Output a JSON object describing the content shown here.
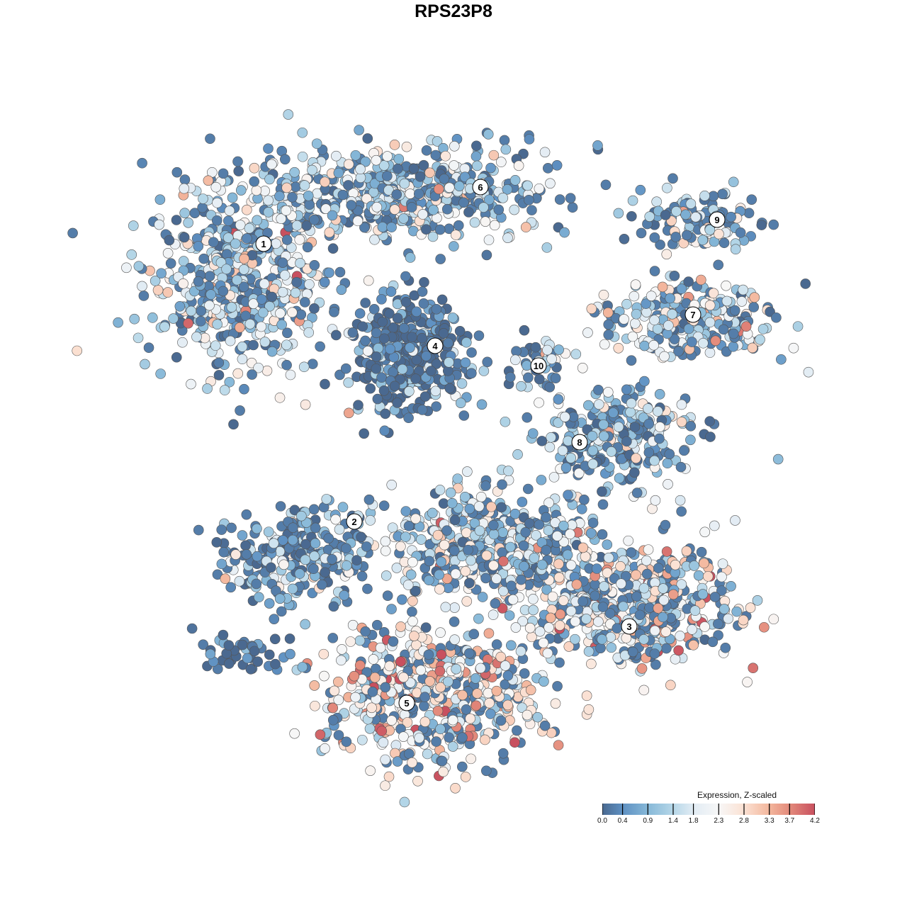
{
  "chart_data": {
    "type": "scatter",
    "title": "RPS23P8",
    "xlabel": "",
    "ylabel": "",
    "xlim": [
      -12,
      12
    ],
    "ylim": [
      -12,
      16
    ],
    "grid": false,
    "axes_visible": false,
    "color_scale": {
      "title": "Expression, Z-scaled",
      "ticks": [
        "0.0",
        "0.4",
        "0.9",
        "1.4",
        "1.8",
        "2.3",
        "2.8",
        "3.3",
        "3.7",
        "4.2"
      ],
      "range": [
        0,
        4.2
      ],
      "colors": [
        "#4a6990",
        "#5e90c2",
        "#86b8d8",
        "#b6d7e8",
        "#e2ecf4",
        "#f7f7f7",
        "#fbe1d3",
        "#f3b69c",
        "#e38a7b",
        "#c8505f"
      ],
      "legend_placement": "bottom-right"
    },
    "clusters": [
      {
        "label": "1",
        "label_pos": [
          -6.7,
          7.4
        ],
        "center": [
          -7.5,
          6.0
        ],
        "spread": [
          3.1,
          2.8
        ],
        "n": 520,
        "mean_expression": 1.5
      },
      {
        "label": "6",
        "label_pos": [
          0.95,
          9.4
        ],
        "center": [
          -2.0,
          9.2
        ],
        "spread": [
          5.2,
          1.6
        ],
        "n": 560,
        "mean_expression": 1.3
      },
      {
        "label": "4",
        "label_pos": [
          -0.65,
          3.8
        ],
        "center": [
          -1.5,
          3.5
        ],
        "spread": [
          1.9,
          1.9
        ],
        "n": 380,
        "mean_expression": 0.25
      },
      {
        "label": "10",
        "label_pos": [
          3.0,
          3.1
        ],
        "center": [
          3.0,
          3.1
        ],
        "spread": [
          0.7,
          0.9
        ],
        "n": 40,
        "mean_expression": 1.2
      },
      {
        "label": "9",
        "label_pos": [
          9.3,
          8.25
        ],
        "center": [
          8.7,
          8.2
        ],
        "spread": [
          1.9,
          0.9
        ],
        "n": 120,
        "mean_expression": 1.4
      },
      {
        "label": "7",
        "label_pos": [
          8.45,
          4.9
        ],
        "center": [
          8.3,
          4.7
        ],
        "spread": [
          3.0,
          1.1
        ],
        "n": 260,
        "mean_expression": 1.5
      },
      {
        "label": "8",
        "label_pos": [
          4.45,
          0.4
        ],
        "center": [
          5.8,
          0.6
        ],
        "spread": [
          2.4,
          1.6
        ],
        "n": 260,
        "mean_expression": 1.0
      },
      {
        "label": "2",
        "label_pos": [
          -3.5,
          -2.4
        ],
        "center": [
          -5.5,
          -3.6
        ],
        "spread": [
          2.4,
          1.5
        ],
        "n": 260,
        "mean_expression": 0.9
      },
      {
        "label": "3",
        "label_pos": [
          6.2,
          -6.1
        ],
        "center": [
          6.5,
          -5.4
        ],
        "spread": [
          3.1,
          1.9
        ],
        "n": 520,
        "mean_expression": 2.0
      },
      {
        "label": "",
        "label_pos": null,
        "center": [
          1.5,
          -3.3
        ],
        "spread": [
          3.6,
          1.9
        ],
        "n": 520,
        "mean_expression": 1.6
      },
      {
        "label": "5",
        "label_pos": [
          -1.65,
          -8.8
        ],
        "center": [
          -0.7,
          -8.5
        ],
        "spread": [
          3.5,
          2.3
        ],
        "n": 560,
        "mean_expression": 2.4
      },
      {
        "label": "",
        "label_pos": null,
        "center": [
          -7.6,
          -7.0
        ],
        "spread": [
          1.4,
          0.7
        ],
        "n": 40,
        "mean_expression": 0.3
      }
    ]
  }
}
